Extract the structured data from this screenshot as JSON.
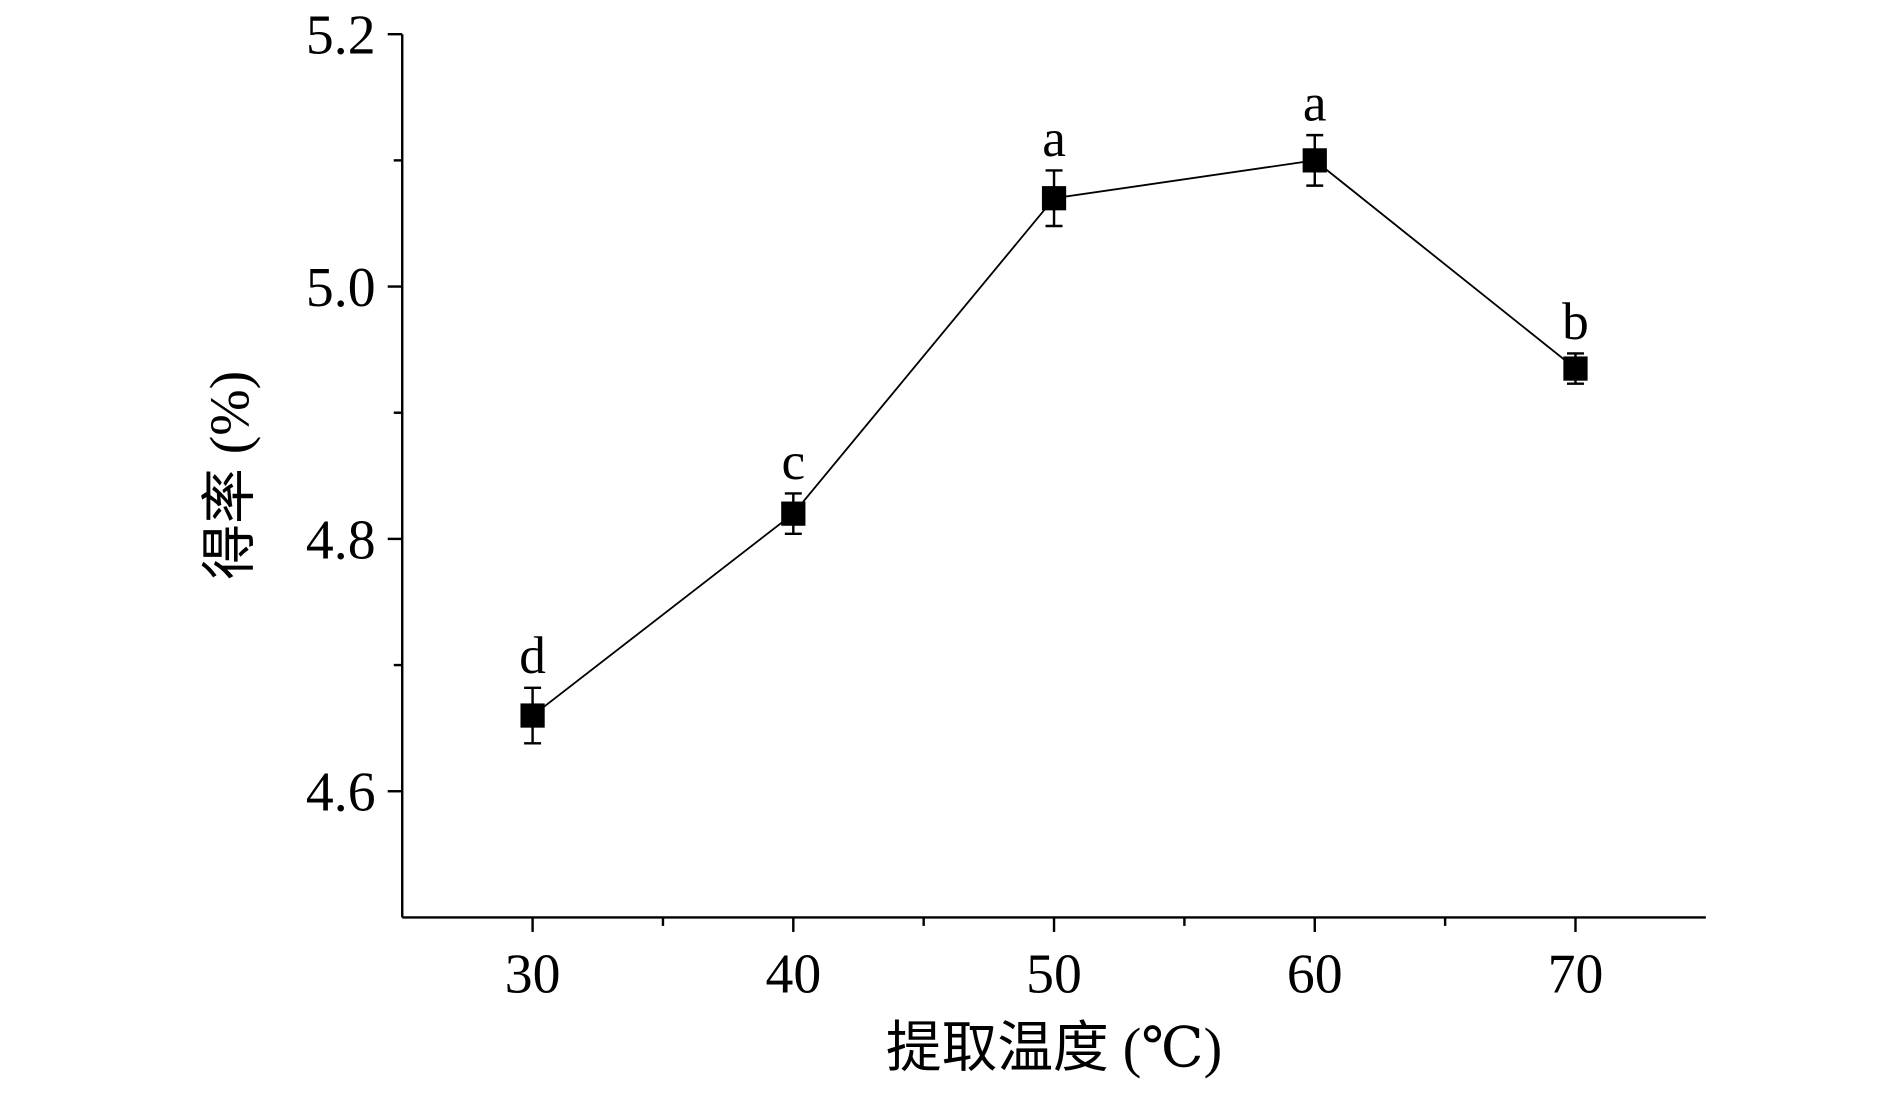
{
  "chart_data": {
    "type": "line",
    "x_label": "提取温度 (℃)",
    "y_label": "得率 (%)",
    "x": [
      30,
      40,
      50,
      60,
      70
    ],
    "series": [
      {
        "name": "得率",
        "color": "#000000",
        "values": [
          4.66,
          4.82,
          5.07,
          5.1,
          4.935
        ],
        "errors": [
          0.022,
          0.016,
          0.022,
          0.02,
          0.012
        ],
        "point_labels": [
          "d",
          "c",
          "a",
          "a",
          "b"
        ]
      }
    ],
    "xlim": [
      25,
      75
    ],
    "xticks": [
      30,
      40,
      50,
      60,
      70
    ],
    "xminor": [
      35,
      45,
      55,
      65
    ],
    "ylim": [
      4.5,
      5.2
    ],
    "yticks": [
      4.6,
      4.8,
      {
        "value": 5,
        "label": "5.0"
      },
      5.2
    ],
    "yminor": [
      4.7,
      4.9,
      5.1
    ],
    "grid": false
  }
}
